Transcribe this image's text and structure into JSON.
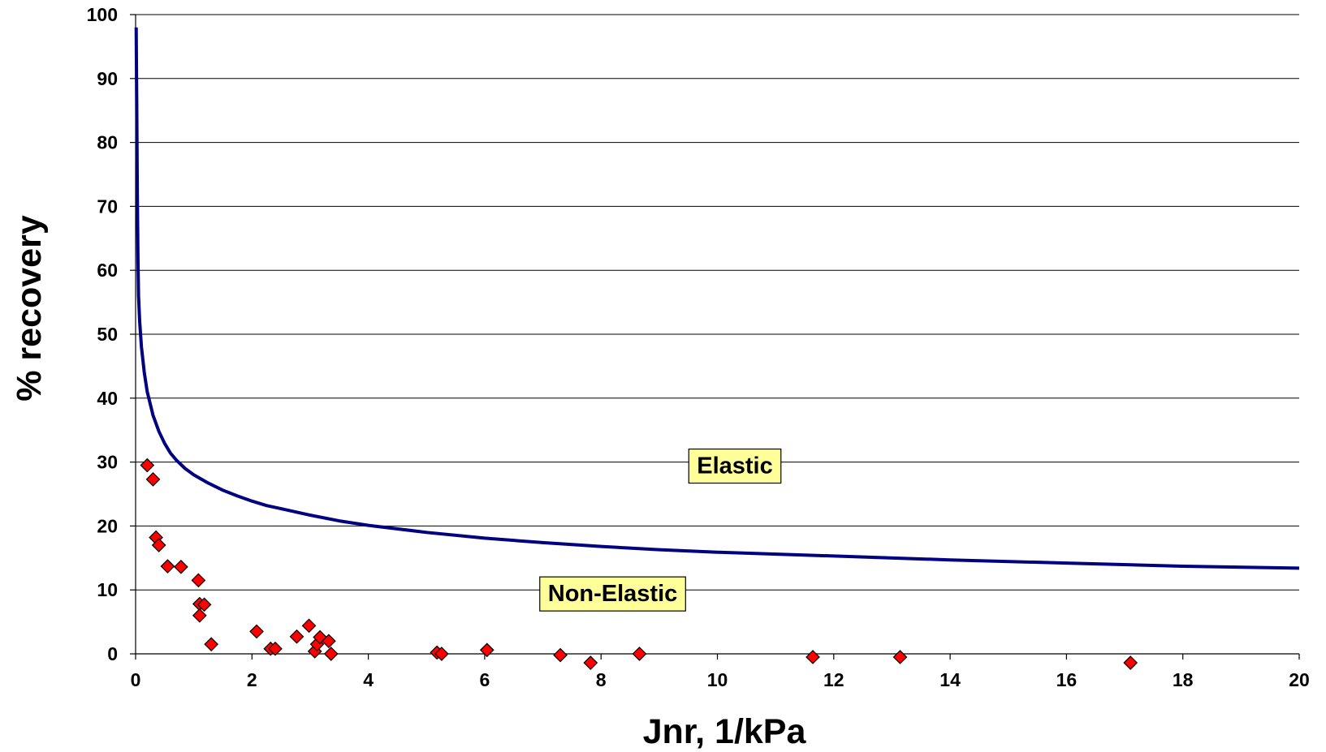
{
  "chart_data": {
    "type": "scatter",
    "xlabel": "Jnr, 1/kPa",
    "ylabel": "% recovery",
    "xlim": [
      0,
      20
    ],
    "ylim": [
      0,
      100
    ],
    "x_ticks": [
      "0",
      "2",
      "4",
      "6",
      "8",
      "10",
      "12",
      "14",
      "16",
      "18",
      "20"
    ],
    "y_ticks": [
      "0",
      "10",
      "20",
      "30",
      "40",
      "50",
      "60",
      "70",
      "80",
      "90",
      "100"
    ],
    "grid": "horizontal",
    "annotations": [
      {
        "text": "Elastic",
        "x": 10.3,
        "y": 29.5
      },
      {
        "text": "Non-Elastic",
        "x": 8.2,
        "y": 9.5
      }
    ],
    "colors": {
      "curve": "#000080",
      "points": "#ff0000",
      "point_edge": "#000000",
      "label_fill": "#ffff99"
    },
    "series": [
      {
        "type": "line",
        "x": [
          0.01,
          0.02,
          0.03,
          0.04,
          0.05,
          0.07,
          0.1,
          0.15,
          0.2,
          0.3,
          0.4,
          0.5,
          0.6,
          0.7,
          0.85,
          1.0,
          1.25,
          1.5,
          1.75,
          2.0,
          2.25,
          2.5,
          3.0,
          3.5,
          4.0,
          5.0,
          6.0,
          7.0,
          8.0,
          9.0,
          10.0,
          12.0,
          14.0,
          16.0,
          18.0,
          20.0
        ],
        "y": [
          98.0,
          86.0,
          72.0,
          62.0,
          56.0,
          52.0,
          48.0,
          44.0,
          41.0,
          37.3,
          34.8,
          32.9,
          31.4,
          30.3,
          29.0,
          28.0,
          26.7,
          25.6,
          24.7,
          23.9,
          23.2,
          22.7,
          21.7,
          20.8,
          20.1,
          19.0,
          18.1,
          17.4,
          16.8,
          16.3,
          15.9,
          15.3,
          14.7,
          14.2,
          13.7,
          13.4
        ]
      },
      {
        "type": "scatter",
        "x": [
          0.2,
          0.3,
          0.35,
          0.4,
          0.55,
          0.78,
          1.08,
          1.1,
          1.1,
          1.18,
          1.3,
          2.08,
          2.32,
          2.4,
          2.77,
          2.98,
          3.08,
          3.12,
          3.17,
          3.32,
          3.36,
          5.18,
          5.26,
          6.04,
          7.3,
          7.82,
          8.66,
          11.64,
          13.14,
          17.1
        ],
        "y": [
          29.5,
          27.3,
          18.2,
          17.0,
          13.7,
          13.6,
          11.5,
          7.8,
          6.0,
          7.7,
          1.5,
          3.5,
          0.8,
          0.8,
          2.7,
          4.4,
          0.4,
          1.5,
          2.6,
          2.0,
          0.0,
          0.2,
          0.0,
          0.6,
          -0.2,
          -1.4,
          0.0,
          -0.5,
          -0.5,
          -1.4
        ]
      }
    ]
  }
}
